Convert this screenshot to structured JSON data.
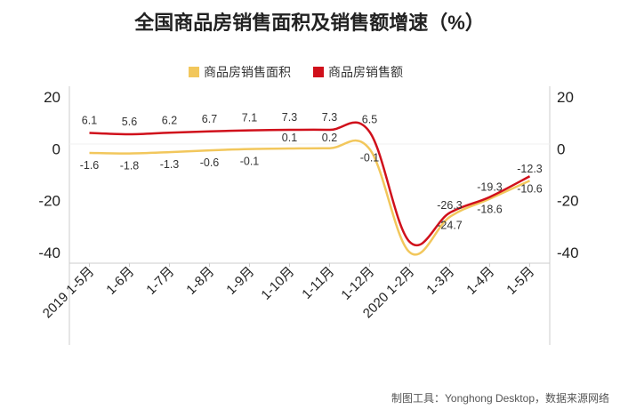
{
  "chart_data": {
    "type": "line",
    "title": "全国商品房销售面积及销售额增速（%）",
    "categories": [
      "2019 1-5月",
      "1-6月",
      "1-7月",
      "1-8月",
      "1-9月",
      "1-10月",
      "1-11月",
      "1-12月",
      "2020 1-2月",
      "1-3月",
      "1-4月",
      "1-5月"
    ],
    "series": [
      {
        "name": "商品房销售面积",
        "color": "#f2c75c",
        "values": [
          -1.6,
          -1.8,
          -1.3,
          -0.6,
          -0.1,
          0.1,
          0.2,
          -0.1,
          -39.9,
          -26.3,
          -19.3,
          -12.3
        ]
      },
      {
        "name": "商品房销售额",
        "color": "#d0101b",
        "values": [
          6.1,
          5.6,
          6.2,
          6.7,
          7.1,
          7.3,
          7.3,
          6.5,
          -35.9,
          -24.7,
          -18.6,
          -10.6
        ]
      }
    ],
    "labels": {
      "area": [
        "-1.6",
        "-1.8",
        "-1.3",
        "-0.6",
        "-0.1",
        "0.1",
        "0.2",
        "-0.1",
        "",
        "-26.3",
        "-19.3",
        "-12.3"
      ],
      "sales": [
        "6.1",
        "5.6",
        "6.2",
        "6.7",
        "7.1",
        "7.3",
        "7.3",
        "6.5",
        "",
        "-24.7",
        "-18.6",
        "-10.6"
      ]
    },
    "yticks_left": [
      "20",
      "0",
      "-20",
      "-40"
    ],
    "yticks_right": [
      "20",
      "0",
      "-20",
      "-40"
    ],
    "ytick_values": [
      20,
      0,
      -20,
      -40
    ],
    "ylim": [
      -42,
      20
    ],
    "legend_position": "top-center",
    "source": "制图工具：Yonghong Desktop，数据来源网络"
  }
}
